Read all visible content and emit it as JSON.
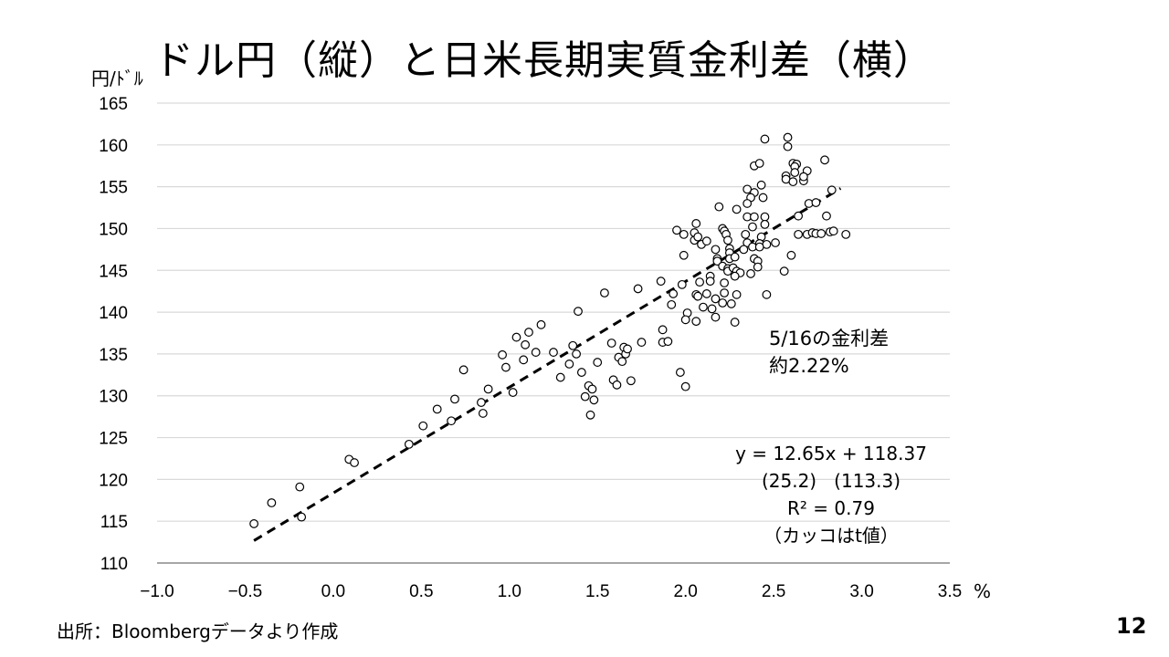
{
  "title": "ドル円（縦）と日米長期実質金利差（横）",
  "page_number": "12",
  "source": "出所：Bloombergデータより作成",
  "chart_data": {
    "type": "scatter",
    "title": "ドル円（縦）と日米長期実質金利差（横）",
    "xlabel": "%",
    "ylabel": "円/ﾄﾞﾙ",
    "xlim": [
      -1.0,
      3.5
    ],
    "ylim": [
      110,
      165
    ],
    "xticks": [
      "−1.0",
      "−0.5",
      "0.0",
      "0.5",
      "1.0",
      "1.5",
      "2.0",
      "2.5",
      "3.0",
      "3.5"
    ],
    "yticks": [
      "110",
      "115",
      "120",
      "125",
      "130",
      "135",
      "140",
      "145",
      "150",
      "155",
      "160",
      "165"
    ],
    "grid": "horizontal",
    "trendline": {
      "slope": 12.65,
      "intercept": 118.37,
      "x_range": [
        -0.45,
        2.88
      ],
      "style": "dashed"
    },
    "annotations": {
      "note_line1": "5/16の金利差",
      "note_line2": "約2.22%",
      "equation": "y = 12.65x + 118.37",
      "tvalues": "(25.2)   (113.3)",
      "r2": "R² = 0.79",
      "caption": "（カッコはt値）"
    },
    "points": [
      [
        -0.45,
        114.7
      ],
      [
        -0.35,
        117.2
      ],
      [
        -0.19,
        119.1
      ],
      [
        -0.18,
        115.5
      ],
      [
        0.09,
        122.4
      ],
      [
        0.12,
        122.0
      ],
      [
        0.43,
        124.2
      ],
      [
        0.51,
        126.4
      ],
      [
        0.59,
        128.4
      ],
      [
        0.67,
        127.0
      ],
      [
        0.69,
        129.6
      ],
      [
        0.74,
        133.1
      ],
      [
        0.84,
        129.2
      ],
      [
        0.85,
        127.9
      ],
      [
        0.88,
        130.8
      ],
      [
        0.96,
        134.9
      ],
      [
        0.98,
        133.4
      ],
      [
        1.02,
        130.4
      ],
      [
        1.04,
        137.0
      ],
      [
        1.08,
        134.3
      ],
      [
        1.09,
        136.1
      ],
      [
        1.11,
        137.6
      ],
      [
        1.15,
        135.2
      ],
      [
        1.18,
        138.5
      ],
      [
        1.25,
        135.2
      ],
      [
        1.29,
        132.2
      ],
      [
        1.34,
        133.8
      ],
      [
        1.36,
        136.0
      ],
      [
        1.38,
        135.0
      ],
      [
        1.39,
        140.1
      ],
      [
        1.41,
        132.8
      ],
      [
        1.43,
        129.9
      ],
      [
        1.45,
        131.2
      ],
      [
        1.46,
        127.7
      ],
      [
        1.47,
        130.8
      ],
      [
        1.48,
        129.5
      ],
      [
        1.5,
        134.0
      ],
      [
        1.54,
        142.3
      ],
      [
        1.58,
        136.3
      ],
      [
        1.59,
        131.9
      ],
      [
        1.61,
        131.3
      ],
      [
        1.62,
        134.6
      ],
      [
        1.64,
        134.1
      ],
      [
        1.65,
        135.8
      ],
      [
        1.66,
        135.0
      ],
      [
        1.67,
        135.6
      ],
      [
        1.69,
        131.8
      ],
      [
        1.73,
        142.8
      ],
      [
        1.75,
        136.4
      ],
      [
        1.86,
        143.7
      ],
      [
        1.87,
        137.9
      ],
      [
        1.87,
        136.4
      ],
      [
        1.9,
        136.5
      ],
      [
        1.92,
        140.9
      ],
      [
        1.93,
        142.2
      ],
      [
        1.95,
        149.8
      ],
      [
        1.97,
        132.8
      ],
      [
        1.98,
        143.3
      ],
      [
        1.99,
        146.8
      ],
      [
        1.99,
        149.3
      ],
      [
        2.0,
        131.1
      ],
      [
        2.45,
        160.7
      ],
      [
        2.58,
        160.9
      ],
      [
        2.58,
        159.8
      ],
      [
        2.79,
        158.2
      ],
      [
        2.39,
        157.5
      ],
      [
        2.42,
        157.8
      ],
      [
        2.61,
        157.8
      ],
      [
        2.63,
        157.7
      ],
      [
        2.62,
        157.4
      ],
      [
        2.62,
        156.7
      ],
      [
        2.69,
        156.9
      ],
      [
        2.57,
        156.3
      ],
      [
        2.57,
        155.9
      ],
      [
        2.61,
        155.6
      ],
      [
        2.67,
        155.7
      ],
      [
        2.67,
        156.2
      ],
      [
        2.43,
        155.2
      ],
      [
        2.35,
        154.7
      ],
      [
        2.39,
        154.3
      ],
      [
        2.37,
        153.7
      ],
      [
        2.44,
        153.7
      ],
      [
        2.83,
        154.6
      ],
      [
        2.35,
        153.0
      ],
      [
        2.7,
        153.0
      ],
      [
        2.74,
        153.1
      ],
      [
        2.19,
        152.6
      ],
      [
        2.29,
        152.3
      ],
      [
        2.35,
        151.4
      ],
      [
        2.39,
        151.4
      ],
      [
        2.45,
        151.4
      ],
      [
        2.64,
        151.5
      ],
      [
        2.8,
        151.5
      ],
      [
        2.06,
        150.6
      ],
      [
        2.38,
        150.2
      ],
      [
        2.45,
        150.5
      ],
      [
        2.05,
        149.5
      ],
      [
        2.05,
        148.6
      ],
      [
        2.07,
        149.0
      ],
      [
        2.09,
        148.1
      ],
      [
        2.12,
        148.5
      ],
      [
        2.21,
        150.0
      ],
      [
        2.22,
        149.7
      ],
      [
        2.23,
        149.3
      ],
      [
        2.24,
        148.6
      ],
      [
        2.34,
        149.3
      ],
      [
        2.43,
        149.0
      ],
      [
        2.35,
        148.3
      ],
      [
        2.42,
        148.2
      ],
      [
        2.46,
        148.1
      ],
      [
        2.51,
        148.3
      ],
      [
        2.64,
        149.3
      ],
      [
        2.69,
        149.3
      ],
      [
        2.72,
        149.5
      ],
      [
        2.74,
        149.4
      ],
      [
        2.77,
        149.4
      ],
      [
        2.82,
        149.6
      ],
      [
        2.84,
        149.7
      ],
      [
        2.91,
        149.3
      ],
      [
        2.17,
        147.5
      ],
      [
        2.25,
        147.6
      ],
      [
        2.25,
        147.1
      ],
      [
        2.33,
        147.5
      ],
      [
        2.38,
        147.8
      ],
      [
        2.42,
        147.8
      ],
      [
        2.18,
        146.4
      ],
      [
        2.18,
        146.1
      ],
      [
        2.25,
        146.4
      ],
      [
        2.28,
        146.6
      ],
      [
        2.39,
        146.4
      ],
      [
        2.41,
        146.1
      ],
      [
        2.6,
        146.8
      ],
      [
        2.21,
        145.5
      ],
      [
        2.24,
        145.2
      ],
      [
        2.24,
        144.9
      ],
      [
        2.27,
        145.3
      ],
      [
        2.29,
        144.9
      ],
      [
        2.31,
        144.7
      ],
      [
        2.28,
        144.3
      ],
      [
        2.41,
        145.4
      ],
      [
        2.37,
        144.6
      ],
      [
        2.56,
        144.9
      ],
      [
        2.08,
        143.6
      ],
      [
        2.14,
        144.3
      ],
      [
        2.14,
        143.7
      ],
      [
        2.22,
        143.5
      ],
      [
        2.06,
        142.1
      ],
      [
        2.07,
        141.9
      ],
      [
        2.12,
        142.2
      ],
      [
        2.17,
        141.6
      ],
      [
        2.22,
        142.3
      ],
      [
        2.29,
        142.1
      ],
      [
        2.46,
        142.1
      ],
      [
        2.1,
        140.6
      ],
      [
        2.15,
        140.4
      ],
      [
        2.21,
        141.1
      ],
      [
        2.26,
        141.0
      ],
      [
        2.01,
        139.9
      ],
      [
        2.0,
        139.1
      ],
      [
        2.06,
        138.9
      ],
      [
        2.17,
        139.4
      ],
      [
        2.28,
        138.8
      ]
    ]
  }
}
